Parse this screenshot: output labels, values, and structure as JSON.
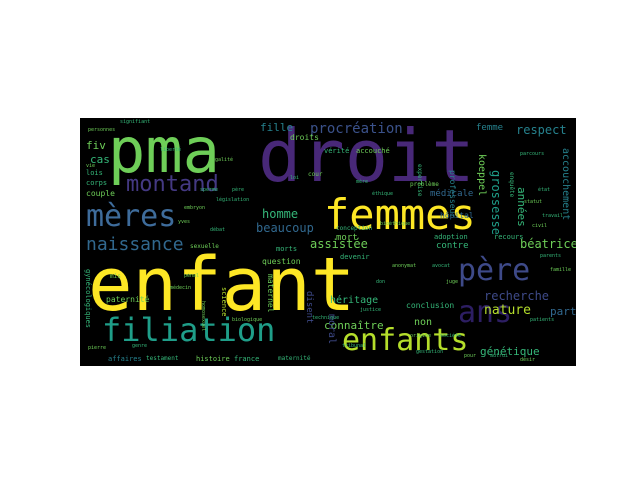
{
  "palette": {
    "background": "#000000",
    "yellow": "#fde725",
    "lime": "#b5de2b",
    "green": "#6ece58",
    "teal_green": "#35b779",
    "teal": "#1f9e89",
    "cyan": "#26828e",
    "blue": "#31688e",
    "indigo": "#3e4a89",
    "purple": "#482878",
    "dark_purple": "#440154"
  },
  "words": [
    {
      "text": "pma",
      "color": "#6ece58"
    },
    {
      "text": "droit",
      "color": "#482878"
    },
    {
      "text": "enfant",
      "color": "#fde725"
    },
    {
      "text": "femmes",
      "color": "#fde725"
    },
    {
      "text": "mères",
      "color": "#3e6c9b"
    },
    {
      "text": "montand",
      "color": "#443983"
    },
    {
      "text": "père",
      "color": "#3e4a89"
    },
    {
      "text": "ans",
      "color": "#2d1e63"
    },
    {
      "text": "filiation",
      "color": "#1f9e89"
    },
    {
      "text": "enfants",
      "color": "#b5de2b"
    },
    {
      "text": "naissance",
      "color": "#31688e"
    },
    {
      "text": "procréation",
      "color": "#3b528b"
    },
    {
      "text": "fille",
      "color": "#26828e"
    },
    {
      "text": "respect",
      "color": "#26828e"
    },
    {
      "text": "homme",
      "color": "#35b779"
    },
    {
      "text": "beaucoup",
      "color": "#31688e"
    },
    {
      "text": "assistée",
      "color": "#6ece58"
    },
    {
      "text": "béatrice",
      "color": "#6ece58"
    },
    {
      "text": "nature",
      "color": "#b5de2b"
    },
    {
      "text": "recherche",
      "color": "#3e4a89"
    },
    {
      "text": "génétique",
      "color": "#35b779"
    },
    {
      "text": "connaître",
      "color": "#6ece58"
    },
    {
      "text": "part",
      "color": "#31688e"
    },
    {
      "text": "années",
      "color": "#35b779"
    },
    {
      "text": "accouchement",
      "color": "#26828e"
    },
    {
      "text": "grossesse",
      "color": "#1f9e89"
    },
    {
      "text": "koeppel",
      "color": "#6ece58"
    },
    {
      "text": "femme",
      "color": "#26828e"
    },
    {
      "text": "médicale",
      "color": "#31688e"
    },
    {
      "text": "fiv",
      "color": "#6ece58"
    },
    {
      "text": "cas",
      "color": "#35b779"
    },
    {
      "text": "mort",
      "color": "#6ece58"
    },
    {
      "text": "héritage",
      "color": "#35b779"
    },
    {
      "text": "moral",
      "color": "#3e4a89"
    },
    {
      "text": "non",
      "color": "#6ece58"
    },
    {
      "text": "contre",
      "color": "#35b779"
    },
    {
      "text": "disent",
      "color": "#3e4a89"
    },
    {
      "text": "morts",
      "color": "#35b779"
    },
    {
      "text": "paternité",
      "color": "#6ece58"
    },
    {
      "text": "histoire",
      "color": "#6ece58"
    },
    {
      "text": "france",
      "color": "#35b779"
    },
    {
      "text": "maternité",
      "color": "#35b779"
    },
    {
      "text": "affaires",
      "color": "#26828e"
    },
    {
      "text": "testament",
      "color": "#35b779"
    },
    {
      "text": "sexuelle",
      "color": "#6ece58"
    },
    {
      "text": "conclusion",
      "color": "#35b779"
    },
    {
      "text": "adoption",
      "color": "#35b779"
    },
    {
      "text": "droits",
      "color": "#6ece58"
    },
    {
      "text": "vérité",
      "color": "#35b779"
    },
    {
      "text": "accouché",
      "color": "#6ece58"
    },
    {
      "text": "conception",
      "color": "#35b779"
    },
    {
      "text": "question",
      "color": "#6ece58"
    },
    {
      "text": "devenir",
      "color": "#35b779"
    },
    {
      "text": "science",
      "color": "#b5de2b"
    },
    {
      "text": "maternel",
      "color": "#6ece58"
    },
    {
      "text": "couple",
      "color": "#6ece58"
    },
    {
      "text": "lois",
      "color": "#35b779"
    },
    {
      "text": "corps",
      "color": "#35b779"
    },
    {
      "text": "professeur",
      "color": "#26828e"
    },
    {
      "text": "hôpital",
      "color": "#31688e"
    },
    {
      "text": "recours",
      "color": "#35b779"
    },
    {
      "text": "enquête",
      "color": "#35b779"
    },
    {
      "text": "expertise",
      "color": "#35b779"
    },
    {
      "text": "problème",
      "color": "#6ece58"
    },
    {
      "text": "cour",
      "color": "#6ece58"
    },
    {
      "text": "signifiant",
      "color": "#35b779"
    },
    {
      "text": "personnes",
      "color": "#6ece58"
    },
    {
      "text": "parcours",
      "color": "#35b779"
    },
    {
      "text": "pénal",
      "color": "#6ece58"
    },
    {
      "text": "mis",
      "color": "#6ece58"
    },
    {
      "text": "gynécologiques",
      "color": "#35b779"
    },
    {
      "text": "travail",
      "color": "#35b779"
    },
    {
      "text": "patients",
      "color": "#35b779"
    },
    {
      "text": "homosexuel",
      "color": "#6ece58"
    },
    {
      "text": "technique",
      "color": "#35b779"
    },
    {
      "text": "justice",
      "color": "#35b779"
    },
    {
      "text": "état",
      "color": "#35b779"
    },
    {
      "text": "civil",
      "color": "#6ece58"
    },
    {
      "text": "père",
      "color": "#35b779"
    },
    {
      "text": "législation",
      "color": "#35b779"
    },
    {
      "text": "médecin",
      "color": "#6ece58"
    },
    {
      "text": "mère",
      "color": "#35b779"
    },
    {
      "text": "anonymat",
      "color": "#6ece58"
    },
    {
      "text": "don",
      "color": "#35b779"
    },
    {
      "text": "origine",
      "color": "#6ece58"
    },
    {
      "text": "société",
      "color": "#35b779"
    },
    {
      "text": "pierre",
      "color": "#6ece58"
    },
    {
      "text": "genre",
      "color": "#35b779"
    },
    {
      "text": "biologique",
      "color": "#6ece58"
    },
    {
      "text": "loi",
      "color": "#35b779"
    },
    {
      "text": "vie",
      "color": "#6ece58"
    },
    {
      "text": "sperme",
      "color": "#35b779"
    },
    {
      "text": "embryon",
      "color": "#6ece58"
    },
    {
      "text": "éthique",
      "color": "#35b779"
    },
    {
      "text": "bioéthique",
      "color": "#6ece58"
    },
    {
      "text": "parents",
      "color": "#35b779"
    },
    {
      "text": "famille",
      "color": "#6ece58"
    },
    {
      "text": "avocat",
      "color": "#35b779"
    },
    {
      "text": "juge",
      "color": "#6ece58"
    },
    {
      "text": "tribunal",
      "color": "#35b779"
    },
    {
      "text": "yves",
      "color": "#6ece58"
    },
    {
      "text": "débat",
      "color": "#35b779"
    },
    {
      "text": "statut",
      "color": "#6ece58"
    },
    {
      "text": "gestation",
      "color": "#35b779"
    },
    {
      "text": "pour",
      "color": "#6ece58"
    },
    {
      "text": "autrui",
      "color": "#35b779"
    },
    {
      "text": "désir",
      "color": "#6ece58"
    },
    {
      "text": "liberté",
      "color": "#35b779"
    },
    {
      "text": "égalité",
      "color": "#6ece58"
    }
  ]
}
